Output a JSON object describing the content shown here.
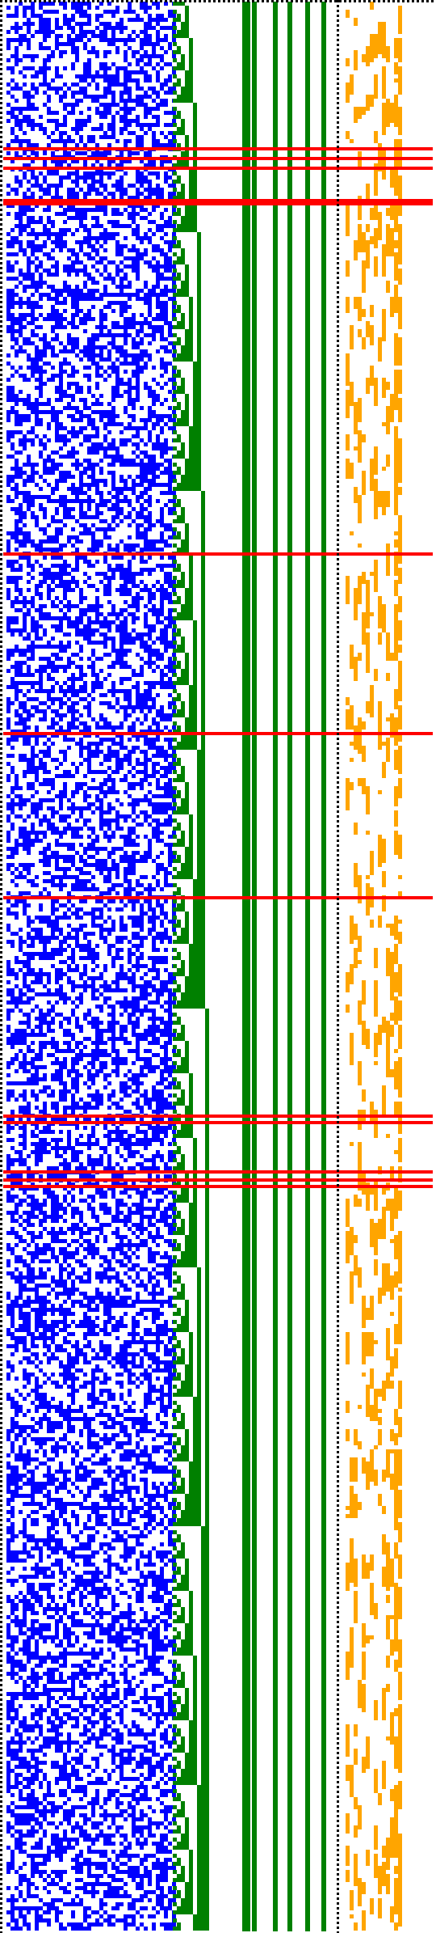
{
  "palette": {
    "background": "#ffffff",
    "border_dots": "#000000",
    "random_bits": "#0000ff",
    "counter_bits": "#008000",
    "highlight_rows": "#ff0000",
    "tail_bits": "#ffa500"
  },
  "panels": [
    {
      "id": "random-panel",
      "style": "dense-random-bits",
      "color_key": "random_bits"
    },
    {
      "id": "counter-panel",
      "style": "binary-counter-staircase-with-stripes",
      "color_key": "counter_bits"
    },
    {
      "id": "tail-panel",
      "style": "sparse-vertical-streaks",
      "color_key": "tail_bits"
    }
  ],
  "highlight_rows": {
    "count": 13,
    "color_key": "highlight_rows"
  },
  "icons": {
    "border": "dotted-frame-icon"
  }
}
